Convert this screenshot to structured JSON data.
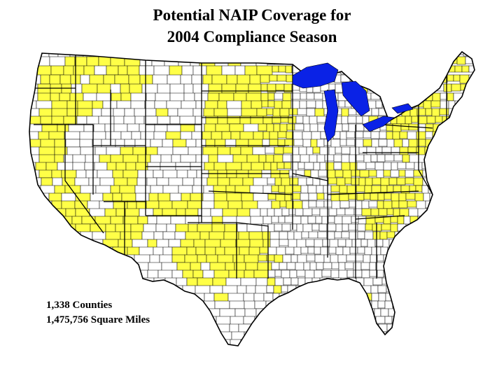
{
  "title": {
    "line1": "Potential NAIP Coverage for",
    "line2": "2004 Compliance Season"
  },
  "stats": {
    "counties": "1,338 Counties",
    "area": "1,475,756 Square Miles"
  },
  "map": {
    "colors": {
      "coverage": "#ffff47",
      "non_coverage": "#ffffff",
      "water": "#0a22e6",
      "border": "#000000"
    }
  }
}
